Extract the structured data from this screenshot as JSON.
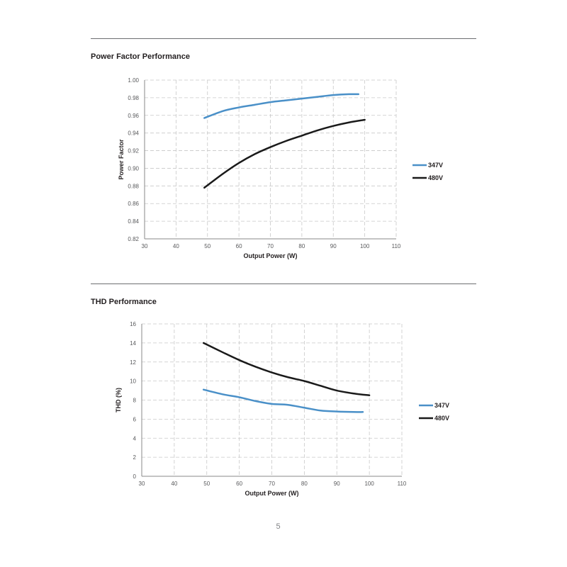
{
  "page_number": "5",
  "sections": {
    "pf": {
      "title": "Power Factor Performance"
    },
    "thd": {
      "title": "THD Performance"
    }
  },
  "chart_data": [
    {
      "type": "line",
      "title": "Power Factor Performance",
      "xlabel": "Output Power (W)",
      "ylabel": "Power Factor",
      "xlim": [
        30,
        110
      ],
      "ylim": [
        0.82,
        1.0
      ],
      "xticks": [
        30,
        40,
        50,
        60,
        70,
        80,
        90,
        100,
        110
      ],
      "yticks": [
        0.82,
        0.84,
        0.86,
        0.88,
        0.9,
        0.92,
        0.94,
        0.96,
        0.98,
        1.0
      ],
      "ytick_labels": [
        "0.82",
        "0.84",
        "0.86",
        "0.88",
        "0.90",
        "0.92",
        "0.94",
        "0.96",
        "0.98",
        "1.00"
      ],
      "grid": true,
      "legend_position": "right",
      "series": [
        {
          "name": "347V",
          "color": "#4a90c8",
          "x": [
            49,
            55,
            60,
            65,
            70,
            75,
            80,
            85,
            90,
            95,
            98
          ],
          "y": [
            0.957,
            0.965,
            0.969,
            0.972,
            0.975,
            0.977,
            0.979,
            0.981,
            0.983,
            0.984,
            0.984
          ]
        },
        {
          "name": "480V",
          "color": "#1a1a1a",
          "x": [
            49,
            55,
            60,
            65,
            70,
            75,
            80,
            85,
            90,
            95,
            100
          ],
          "y": [
            0.878,
            0.894,
            0.906,
            0.916,
            0.924,
            0.931,
            0.937,
            0.943,
            0.948,
            0.952,
            0.955
          ]
        }
      ]
    },
    {
      "type": "line",
      "title": "THD Performance",
      "xlabel": "Output Power (W)",
      "ylabel": "THD (%)",
      "xlim": [
        30,
        110
      ],
      "ylim": [
        0,
        16
      ],
      "xticks": [
        30,
        40,
        50,
        60,
        70,
        80,
        90,
        100,
        110
      ],
      "yticks": [
        0,
        2,
        4,
        6,
        8,
        10,
        12,
        14,
        16
      ],
      "ytick_labels": [
        "0",
        "2",
        "4",
        "6",
        "8",
        "10",
        "12",
        "14",
        "16"
      ],
      "grid": true,
      "legend_position": "right",
      "series": [
        {
          "name": "347V",
          "color": "#4a90c8",
          "x": [
            49,
            55,
            60,
            65,
            70,
            75,
            80,
            85,
            90,
            95,
            98
          ],
          "y": [
            9.1,
            8.6,
            8.3,
            7.9,
            7.6,
            7.5,
            7.2,
            6.9,
            6.8,
            6.75,
            6.75
          ]
        },
        {
          "name": "480V",
          "color": "#1a1a1a",
          "x": [
            49,
            55,
            60,
            65,
            70,
            75,
            80,
            85,
            90,
            95,
            100
          ],
          "y": [
            14.0,
            13.0,
            12.2,
            11.5,
            10.9,
            10.4,
            10.0,
            9.5,
            9.0,
            8.7,
            8.5
          ]
        }
      ]
    }
  ]
}
